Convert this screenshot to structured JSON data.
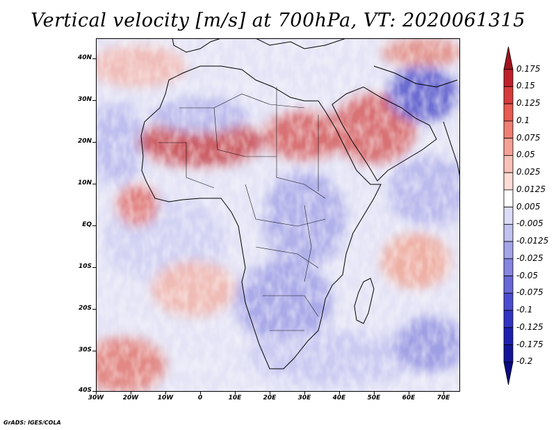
{
  "title": "Vertical velocity [m/s] at 700hPa, VT: 2020061315",
  "footer": "GrADS: IGES/COLA",
  "map": {
    "region": "Africa and surrounding oceans",
    "lon_range": [
      -30,
      75
    ],
    "lat_range": [
      -40,
      45
    ],
    "lat_ticks": [
      "40N",
      "30N",
      "20N",
      "10N",
      "EQ",
      "10S",
      "20S",
      "30S",
      "40S"
    ],
    "lon_ticks": [
      "30W",
      "20W",
      "10W",
      "0",
      "10E",
      "20E",
      "30E",
      "40E",
      "50E",
      "60E",
      "70E"
    ]
  },
  "colorbar": {
    "levels": [
      "0.175",
      "0.15",
      "0.125",
      "0.1",
      "0.075",
      "0.05",
      "0.025",
      "0.0125",
      "0.005",
      "-0.005",
      "-0.0125",
      "-0.025",
      "-0.05",
      "-0.075",
      "-0.1",
      "-0.125",
      "-0.175",
      "-0.2"
    ],
    "colors": [
      "#a0141e",
      "#c0202a",
      "#d83b3b",
      "#e85a52",
      "#f07f72",
      "#f6a196",
      "#f9c2b8",
      "#fcdcd5",
      "#ffffff",
      "#dcdcf6",
      "#c2c2f0",
      "#a5a5ea",
      "#8686e2",
      "#6868d9",
      "#4c4cd0",
      "#3333c4",
      "#1f1fb0",
      "#14149a",
      "#0a0a80"
    ]
  }
}
